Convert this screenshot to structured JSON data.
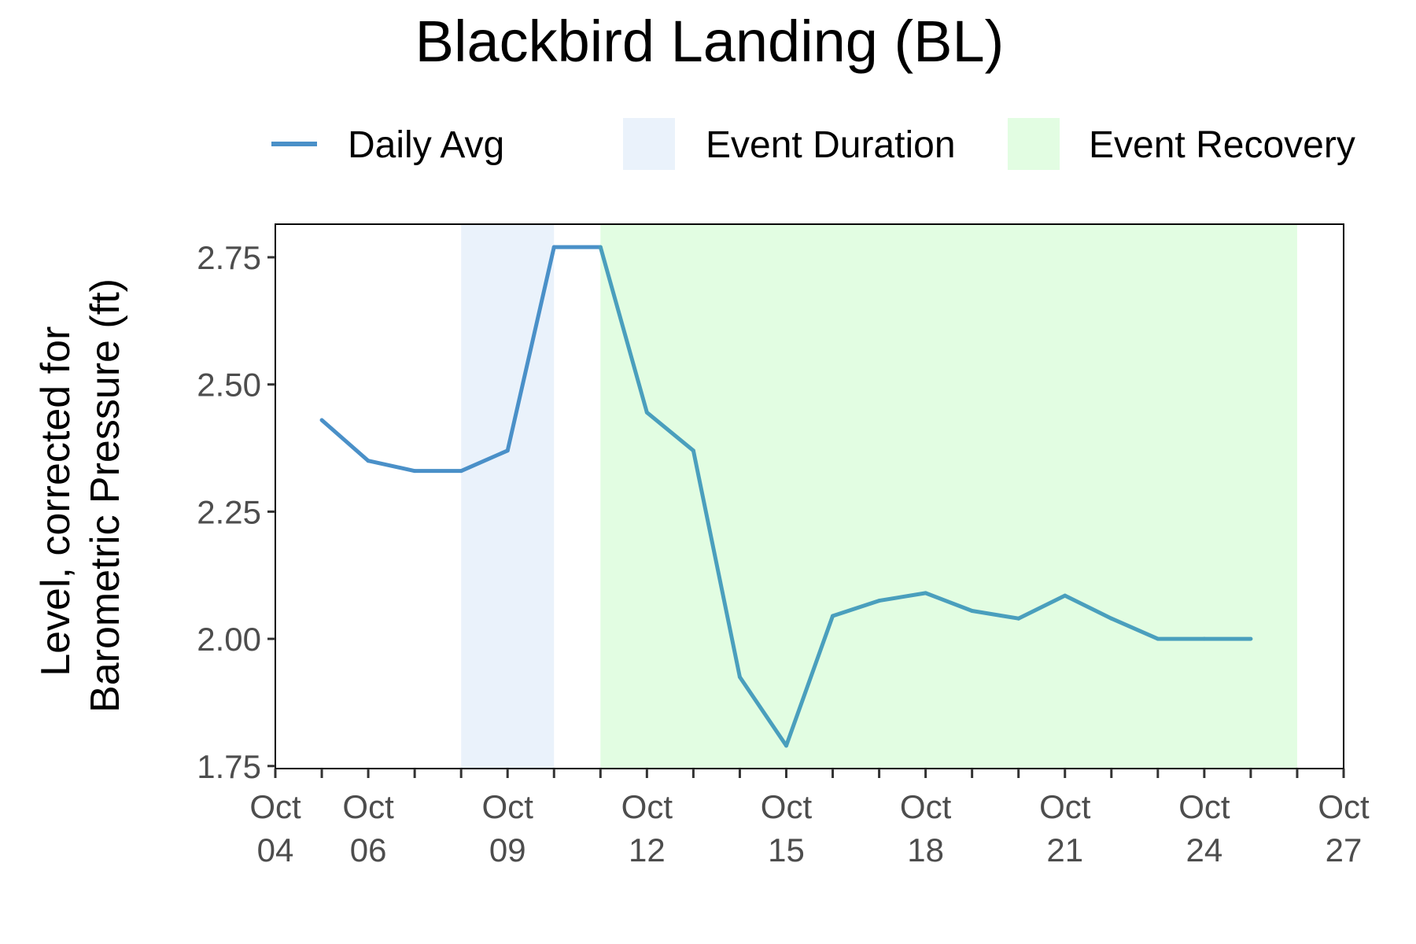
{
  "chart_data": {
    "type": "line",
    "title": "Blackbird Landing (BL)",
    "ylabel_lines": [
      "Level, corrected for",
      "Barometric Pressure (ft)"
    ],
    "xlabel": "",
    "x_tick_dates": [
      "Oct 04",
      "Oct 06",
      "Oct 09",
      "Oct 12",
      "Oct 15",
      "Oct 18",
      "Oct 21",
      "Oct 24",
      "Oct 27"
    ],
    "x_tick_labels": [
      [
        "Oct",
        "04"
      ],
      [
        "Oct",
        "06"
      ],
      [
        "Oct",
        "09"
      ],
      [
        "Oct",
        "12"
      ],
      [
        "Oct",
        "15"
      ],
      [
        "Oct",
        "18"
      ],
      [
        "Oct",
        "21"
      ],
      [
        "Oct",
        "24"
      ],
      [
        "Oct",
        "27"
      ]
    ],
    "y_ticks": [
      "1.75",
      "2.00",
      "2.25",
      "2.50",
      "2.75"
    ],
    "xlim": [
      "Oct 04",
      "Oct 27"
    ],
    "ylim": [
      1.745,
      2.815
    ],
    "grid": false,
    "legend_position": "top",
    "legend": [
      {
        "label": "Daily Avg",
        "kind": "line",
        "color": "#4a90c8"
      },
      {
        "label": "Event Duration",
        "kind": "area",
        "color": "#eaf2fb"
      },
      {
        "label": "Event Recovery",
        "kind": "area",
        "color": "#e2fde2"
      }
    ],
    "shaded_regions": [
      {
        "name": "Event Duration",
        "start": "Oct 08",
        "end": "Oct 10",
        "color": "#eaf2fb"
      },
      {
        "name": "Event Recovery",
        "start": "Oct 11",
        "end": "Oct 26",
        "color": "#e2fde2"
      }
    ],
    "series": [
      {
        "name": "Daily Avg",
        "color": "#4a90c8",
        "recovery_color": "#4a9fbd",
        "x": [
          "Oct 05",
          "Oct 06",
          "Oct 07",
          "Oct 08",
          "Oct 09",
          "Oct 10",
          "Oct 11",
          "Oct 12",
          "Oct 13",
          "Oct 14",
          "Oct 15",
          "Oct 16",
          "Oct 17",
          "Oct 18",
          "Oct 19",
          "Oct 20",
          "Oct 21",
          "Oct 22",
          "Oct 23",
          "Oct 24",
          "Oct 25"
        ],
        "y": [
          2.43,
          2.35,
          2.33,
          2.33,
          2.37,
          2.77,
          2.77,
          2.445,
          2.37,
          1.925,
          1.79,
          2.045,
          2.075,
          2.09,
          2.055,
          2.04,
          2.085,
          2.04,
          2.0,
          2.0,
          2.0
        ]
      }
    ]
  }
}
